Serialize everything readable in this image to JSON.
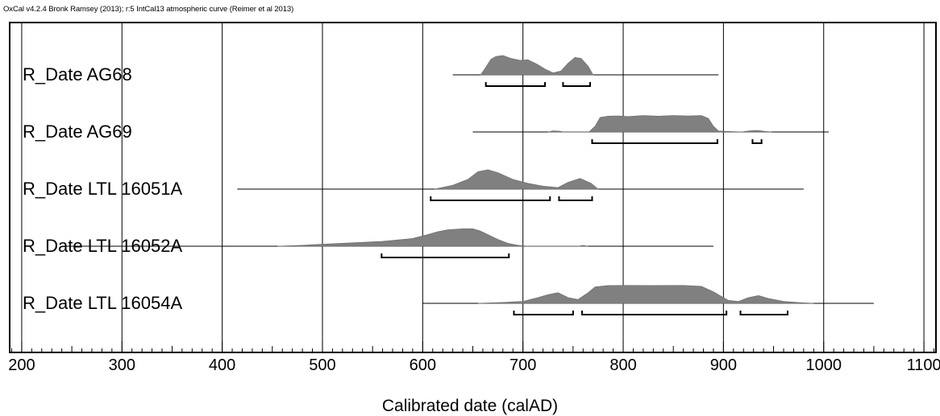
{
  "header": {
    "credit": "OxCal v4.2.4 Bronk Ramsey (2013); r:5 IntCal13 atmospheric curve (Reimer et al 2013)"
  },
  "chart_data": {
    "type": "area",
    "xlabel": "Calibrated date (calAD)",
    "xlim": [
      188,
      1112
    ],
    "xticks": [
      200,
      300,
      400,
      500,
      600,
      700,
      800,
      900,
      1000,
      1100
    ],
    "minor_tick_step": 10,
    "grid": true,
    "colors": {
      "distribution": "#808080",
      "outline": "#000000"
    },
    "series": [
      {
        "name": "R_Date AG68",
        "prior_range": [
          630,
          895
        ],
        "distribution": [
          [
            658,
            0
          ],
          [
            663,
            0.4
          ],
          [
            668,
            0.8
          ],
          [
            673,
            0.95
          ],
          [
            680,
            1.0
          ],
          [
            688,
            0.85
          ],
          [
            697,
            0.75
          ],
          [
            705,
            0.78
          ],
          [
            714,
            0.55
          ],
          [
            722,
            0.3
          ],
          [
            730,
            0.1
          ],
          [
            738,
            0.2
          ],
          [
            745,
            0.6
          ],
          [
            752,
            0.9
          ],
          [
            758,
            0.85
          ],
          [
            765,
            0.45
          ],
          [
            770,
            0
          ]
        ],
        "ranges": [
          [
            663,
            722
          ],
          [
            740,
            767
          ]
        ]
      },
      {
        "name": "R_Date AG69",
        "prior_range": [
          650,
          1005
        ],
        "distribution": [
          [
            725,
            0
          ],
          [
            730,
            0.06
          ],
          [
            736,
            0.04
          ],
          [
            741,
            0
          ],
          [
            766,
            0
          ],
          [
            772,
            0.3
          ],
          [
            777,
            0.75
          ],
          [
            785,
            0.82
          ],
          [
            795,
            0.83
          ],
          [
            805,
            0.8
          ],
          [
            820,
            0.85
          ],
          [
            835,
            0.82
          ],
          [
            850,
            0.85
          ],
          [
            865,
            0.83
          ],
          [
            878,
            0.85
          ],
          [
            885,
            0.7
          ],
          [
            890,
            0.3
          ],
          [
            895,
            0.05
          ],
          [
            918,
            0
          ],
          [
            926,
            0.06
          ],
          [
            934,
            0.08
          ],
          [
            942,
            0.03
          ],
          [
            948,
            0
          ]
        ],
        "ranges": [
          [
            769,
            894
          ],
          [
            929,
            938
          ]
        ]
      },
      {
        "name": "R_Date LTL 16051A",
        "prior_range": [
          415,
          980
        ],
        "distribution": [
          [
            612,
            0
          ],
          [
            630,
            0.2
          ],
          [
            645,
            0.5
          ],
          [
            655,
            0.9
          ],
          [
            665,
            1.0
          ],
          [
            675,
            0.85
          ],
          [
            690,
            0.5
          ],
          [
            705,
            0.3
          ],
          [
            720,
            0.15
          ],
          [
            735,
            0.08
          ],
          [
            745,
            0.35
          ],
          [
            757,
            0.55
          ],
          [
            768,
            0.3
          ],
          [
            775,
            0
          ]
        ],
        "ranges": [
          [
            608,
            727
          ],
          [
            736,
            769
          ]
        ]
      },
      {
        "name": "R_Date LTL 16052A",
        "prior_range": [
          240,
          890
        ],
        "distribution": [
          [
            455,
            0
          ],
          [
            480,
            0.05
          ],
          [
            520,
            0.15
          ],
          [
            560,
            0.25
          ],
          [
            590,
            0.4
          ],
          [
            605,
            0.6
          ],
          [
            615,
            0.75
          ],
          [
            625,
            0.85
          ],
          [
            640,
            0.9
          ],
          [
            650,
            0.9
          ],
          [
            657,
            0.8
          ],
          [
            665,
            0.6
          ],
          [
            675,
            0.35
          ],
          [
            685,
            0.15
          ],
          [
            695,
            0.05
          ],
          [
            705,
            0
          ],
          [
            755,
            0
          ],
          [
            760,
            0.04
          ],
          [
            765,
            0
          ]
        ],
        "ranges": [
          [
            559,
            686
          ]
        ]
      },
      {
        "name": "R_Date LTL 16054A",
        "prior_range": [
          600,
          1050
        ],
        "distribution": [
          [
            655,
            0
          ],
          [
            680,
            0.05
          ],
          [
            700,
            0.1
          ],
          [
            715,
            0.3
          ],
          [
            725,
            0.45
          ],
          [
            735,
            0.55
          ],
          [
            745,
            0.3
          ],
          [
            755,
            0.2
          ],
          [
            765,
            0.55
          ],
          [
            772,
            0.85
          ],
          [
            785,
            0.92
          ],
          [
            800,
            0.93
          ],
          [
            830,
            0.92
          ],
          [
            860,
            0.93
          ],
          [
            878,
            0.88
          ],
          [
            890,
            0.6
          ],
          [
            905,
            0.15
          ],
          [
            915,
            0.1
          ],
          [
            925,
            0.3
          ],
          [
            935,
            0.4
          ],
          [
            945,
            0.25
          ],
          [
            960,
            0.1
          ],
          [
            975,
            0.04
          ],
          [
            990,
            0
          ]
        ],
        "ranges": [
          [
            691,
            750
          ],
          [
            759,
            903
          ],
          [
            917,
            964
          ]
        ]
      }
    ]
  }
}
